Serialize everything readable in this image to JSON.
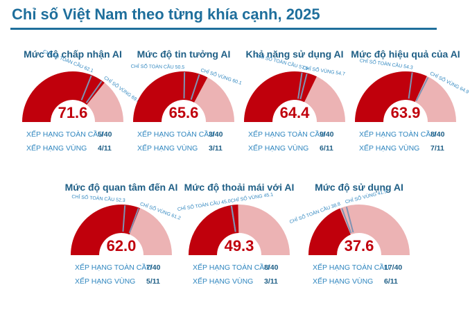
{
  "page": {
    "title": "Chỉ số Việt Nam theo từng khía cạnh, 2025",
    "accent_color": "#1f6f9c"
  },
  "colors": {
    "fill": "#c0000c",
    "remainder": "#ecb3b4",
    "value_text": "#c0000c",
    "marker": "#7f93b3",
    "marker_label": "#2f86bf",
    "card_title": "#1f5f86",
    "stat_label": "#2f86bf"
  },
  "labels": {
    "global_index": "CHỈ SỐ TOÀN CẦU",
    "regional_index": "CHỈ SỐ VÙNG",
    "global_rank": "XẾP HẠNG TOÀN CẦU",
    "regional_rank": "XẾP HẠNG VÙNG"
  },
  "chart_data": [
    {
      "type": "gauge",
      "title": "Mức độ chấp nhận AI",
      "value": 71.6,
      "value_label": "71.6",
      "range": [
        0,
        100
      ],
      "global_index": 62.1,
      "global_index_label": "62.1",
      "regional_index": 69.6,
      "regional_index_label": "69.6",
      "global_rank": "5/40",
      "regional_rank": "4/11"
    },
    {
      "type": "gauge",
      "title": "Mức độ tin tưởng AI",
      "value": 65.6,
      "value_label": "65.6",
      "range": [
        0,
        100
      ],
      "global_index": 50.5,
      "global_index_label": "50.5",
      "regional_index": 60.1,
      "regional_index_label": "60.1",
      "global_rank": "3/40",
      "regional_rank": "3/11"
    },
    {
      "type": "gauge",
      "title": "Khả năng sử dụng AI",
      "value": 64.4,
      "value_label": "64.4",
      "range": [
        0,
        100
      ],
      "global_index": 57.9,
      "global_index_label": "57.9",
      "regional_index": 54.7,
      "regional_index_label": "54.7",
      "global_rank": "9/40",
      "regional_rank": "6/11"
    },
    {
      "type": "gauge",
      "title": "Mức độ hiệu quả của AI",
      "value": 63.9,
      "value_label": "63.9",
      "range": [
        0,
        100
      ],
      "global_index": 54.3,
      "global_index_label": "54.3",
      "regional_index": 64.9,
      "regional_index_label": "64.9",
      "global_rank": "8/40",
      "regional_rank": "7/11"
    },
    {
      "type": "gauge",
      "title": "Mức độ quan tâm đến AI",
      "value": 62.0,
      "value_label": "62.0",
      "range": [
        0,
        100
      ],
      "global_index": 52.3,
      "global_index_label": "52.3",
      "regional_index": 61.2,
      "regional_index_label": "61.2",
      "global_rank": "7/40",
      "regional_rank": "5/11"
    },
    {
      "type": "gauge",
      "title": "Mức độ thoải mái với AI",
      "value": 49.3,
      "value_label": "49.3",
      "range": [
        0,
        100
      ],
      "global_index": 45.0,
      "global_index_label": "45.0",
      "regional_index": 45.1,
      "regional_index_label": "45.1",
      "global_rank": "8/40",
      "regional_rank": "3/11"
    },
    {
      "type": "gauge",
      "title": "Mức độ sử dụng AI",
      "value": 37.6,
      "value_label": "37.6",
      "range": [
        0,
        100
      ],
      "global_index": 38.8,
      "global_index_label": "38.8",
      "regional_index": 41.9,
      "regional_index_label": "41.9",
      "global_rank": "17/40",
      "regional_rank": "6/11"
    }
  ]
}
